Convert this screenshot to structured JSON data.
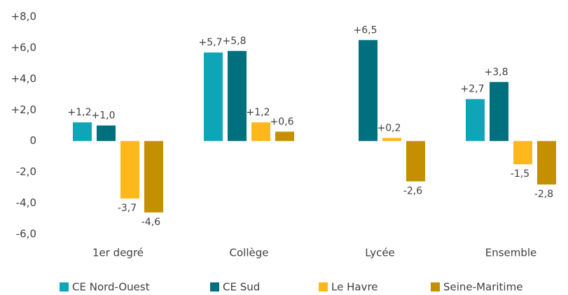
{
  "chart_data": {
    "type": "bar",
    "categories": [
      "1er degré",
      "Collège",
      "Lycée",
      "Ensemble"
    ],
    "series": [
      {
        "name": "CE Nord-Ouest",
        "color": "#0ea5b8",
        "values": [
          1.2,
          5.7,
          null,
          2.7
        ],
        "value_labels": [
          "+1,2",
          "+5,7",
          null,
          "+2,7"
        ]
      },
      {
        "name": "CE Sud",
        "color": "#00707f",
        "values": [
          1.0,
          5.8,
          6.5,
          3.8
        ],
        "value_labels": [
          "+1,0",
          "+5,8",
          "+6,5",
          "+3,8"
        ]
      },
      {
        "name": "Le Havre",
        "color": "#ffb81c",
        "values": [
          -3.7,
          1.2,
          0.2,
          -1.5
        ],
        "value_labels": [
          "-3,7",
          "+1,2",
          "+0,2",
          "-1,5"
        ]
      },
      {
        "name": "Seine-Maritime",
        "color": "#c48f00",
        "values": [
          -4.6,
          0.6,
          -2.6,
          -2.8
        ],
        "value_labels": [
          "-4,6",
          "+0,6",
          "-2,6",
          "-2,8"
        ]
      }
    ],
    "ylim": [
      -6,
      8
    ],
    "yticks": [
      {
        "value": -6,
        "label": "-6,0"
      },
      {
        "value": -4,
        "label": "-4,0"
      },
      {
        "value": -2,
        "label": "-2,0"
      },
      0,
      {
        "value": 2,
        "label": "+2,0"
      },
      {
        "value": 4,
        "label": "+4,0"
      },
      {
        "value": 6,
        "label": "+6,0"
      },
      {
        "value": 8,
        "label": "+8,0"
      }
    ],
    "grid": false,
    "legend": "bottom"
  }
}
